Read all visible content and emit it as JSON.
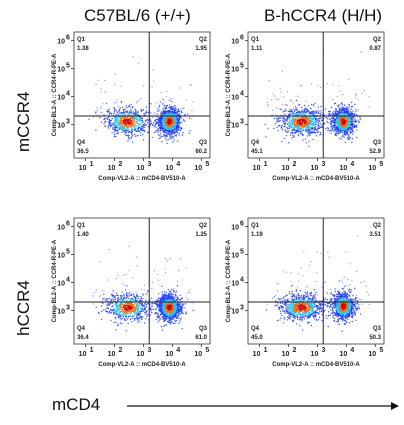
{
  "figure": {
    "column_titles": [
      "C57BL/6 (+/+)",
      "B-hCCR4 (H/H)"
    ],
    "row_labels": [
      "mCCR4",
      "hCCR4"
    ],
    "bottom_axis_label": "mCD4"
  },
  "colors": {
    "gate_lines": "#222222",
    "density_low": "#1f3cff",
    "density_mid": "#25c4e8",
    "density_high": "#ff6a00",
    "density_peak": "#d40000"
  },
  "chart_data": [
    {
      "type": "scatter",
      "scale": "log",
      "xlabel": "Comp-VL2-A :: mCD4-BV510-A",
      "ylabel": "Comp-BL2-A :: CCR4-R-PE-A",
      "x_ticks": [
        "10",
        "10",
        "10",
        "10",
        "10"
      ],
      "x_tick_exps": [
        "1",
        "2",
        "3",
        "4",
        "5"
      ],
      "y_ticks": [
        "10",
        "10",
        "10",
        "10"
      ],
      "y_tick_exps": [
        "3",
        "4",
        "5",
        "6"
      ],
      "quadrants": [
        {
          "label": "Q1",
          "value": "1.38"
        },
        {
          "label": "Q2",
          "value": "1.95"
        },
        {
          "label": "Q3",
          "value": "60.2"
        },
        {
          "label": "Q4",
          "value": "36.5"
        }
      ],
      "gate_x": 3.2,
      "gate_y": 3.3,
      "populations": [
        {
          "x": 2.45,
          "y": 3.1,
          "weight": 36.5
        },
        {
          "x": 3.9,
          "y": 3.1,
          "weight": 60.2
        }
      ]
    },
    {
      "type": "scatter",
      "scale": "log",
      "xlabel": "Comp-VL2-A :: mCD4-BV510-A",
      "ylabel": "Comp-BL2-A :: CCR4-R-PE-A",
      "x_ticks": [
        "10",
        "10",
        "10",
        "10",
        "10"
      ],
      "x_tick_exps": [
        "1",
        "2",
        "3",
        "4",
        "5"
      ],
      "y_ticks": [
        "10",
        "10",
        "10",
        "10"
      ],
      "y_tick_exps": [
        "3",
        "4",
        "5",
        "6"
      ],
      "quadrants": [
        {
          "label": "Q1",
          "value": "1.11"
        },
        {
          "label": "Q2",
          "value": "0.87"
        },
        {
          "label": "Q3",
          "value": "52.9"
        },
        {
          "label": "Q4",
          "value": "45.1"
        }
      ],
      "gate_x": 3.2,
      "gate_y": 3.3,
      "populations": [
        {
          "x": 2.45,
          "y": 3.1,
          "weight": 45.1
        },
        {
          "x": 3.9,
          "y": 3.1,
          "weight": 52.9
        }
      ]
    },
    {
      "type": "scatter",
      "scale": "log",
      "xlabel": "Comp-VL2-A :: mCD4-BV510-A",
      "ylabel": "Comp-BL2-A :: CCR4-R-PE-A",
      "x_ticks": [
        "10",
        "10",
        "10",
        "10",
        "10"
      ],
      "x_tick_exps": [
        "1",
        "2",
        "3",
        "4",
        "5"
      ],
      "y_ticks": [
        "10",
        "10",
        "10",
        "10"
      ],
      "y_tick_exps": [
        "3",
        "4",
        "5",
        "6"
      ],
      "quadrants": [
        {
          "label": "Q1",
          "value": "1.40"
        },
        {
          "label": "Q2",
          "value": "1.25"
        },
        {
          "label": "Q3",
          "value": "61.0"
        },
        {
          "label": "Q4",
          "value": "36.4"
        }
      ],
      "gate_x": 3.2,
      "gate_y": 3.3,
      "populations": [
        {
          "x": 2.45,
          "y": 3.1,
          "weight": 36.4
        },
        {
          "x": 3.9,
          "y": 3.1,
          "weight": 61.0
        }
      ]
    },
    {
      "type": "scatter",
      "scale": "log",
      "xlabel": "Comp-VL2-A :: mCD4-BV510-A",
      "ylabel": "Comp-BL2-A :: CCR4-R-PE-A",
      "x_ticks": [
        "10",
        "10",
        "10",
        "10",
        "10"
      ],
      "x_tick_exps": [
        "1",
        "2",
        "3",
        "4",
        "5"
      ],
      "y_ticks": [
        "10",
        "10",
        "10",
        "10"
      ],
      "y_tick_exps": [
        "3",
        "4",
        "5",
        "6"
      ],
      "quadrants": [
        {
          "label": "Q1",
          "value": "1.19"
        },
        {
          "label": "Q2",
          "value": "3.51"
        },
        {
          "label": "Q3",
          "value": "50.3"
        },
        {
          "label": "Q4",
          "value": "45.0"
        }
      ],
      "gate_x": 3.2,
      "gate_y": 3.3,
      "populations": [
        {
          "x": 2.45,
          "y": 3.1,
          "weight": 45.0
        },
        {
          "x": 3.9,
          "y": 3.15,
          "weight": 50.3
        }
      ]
    }
  ]
}
